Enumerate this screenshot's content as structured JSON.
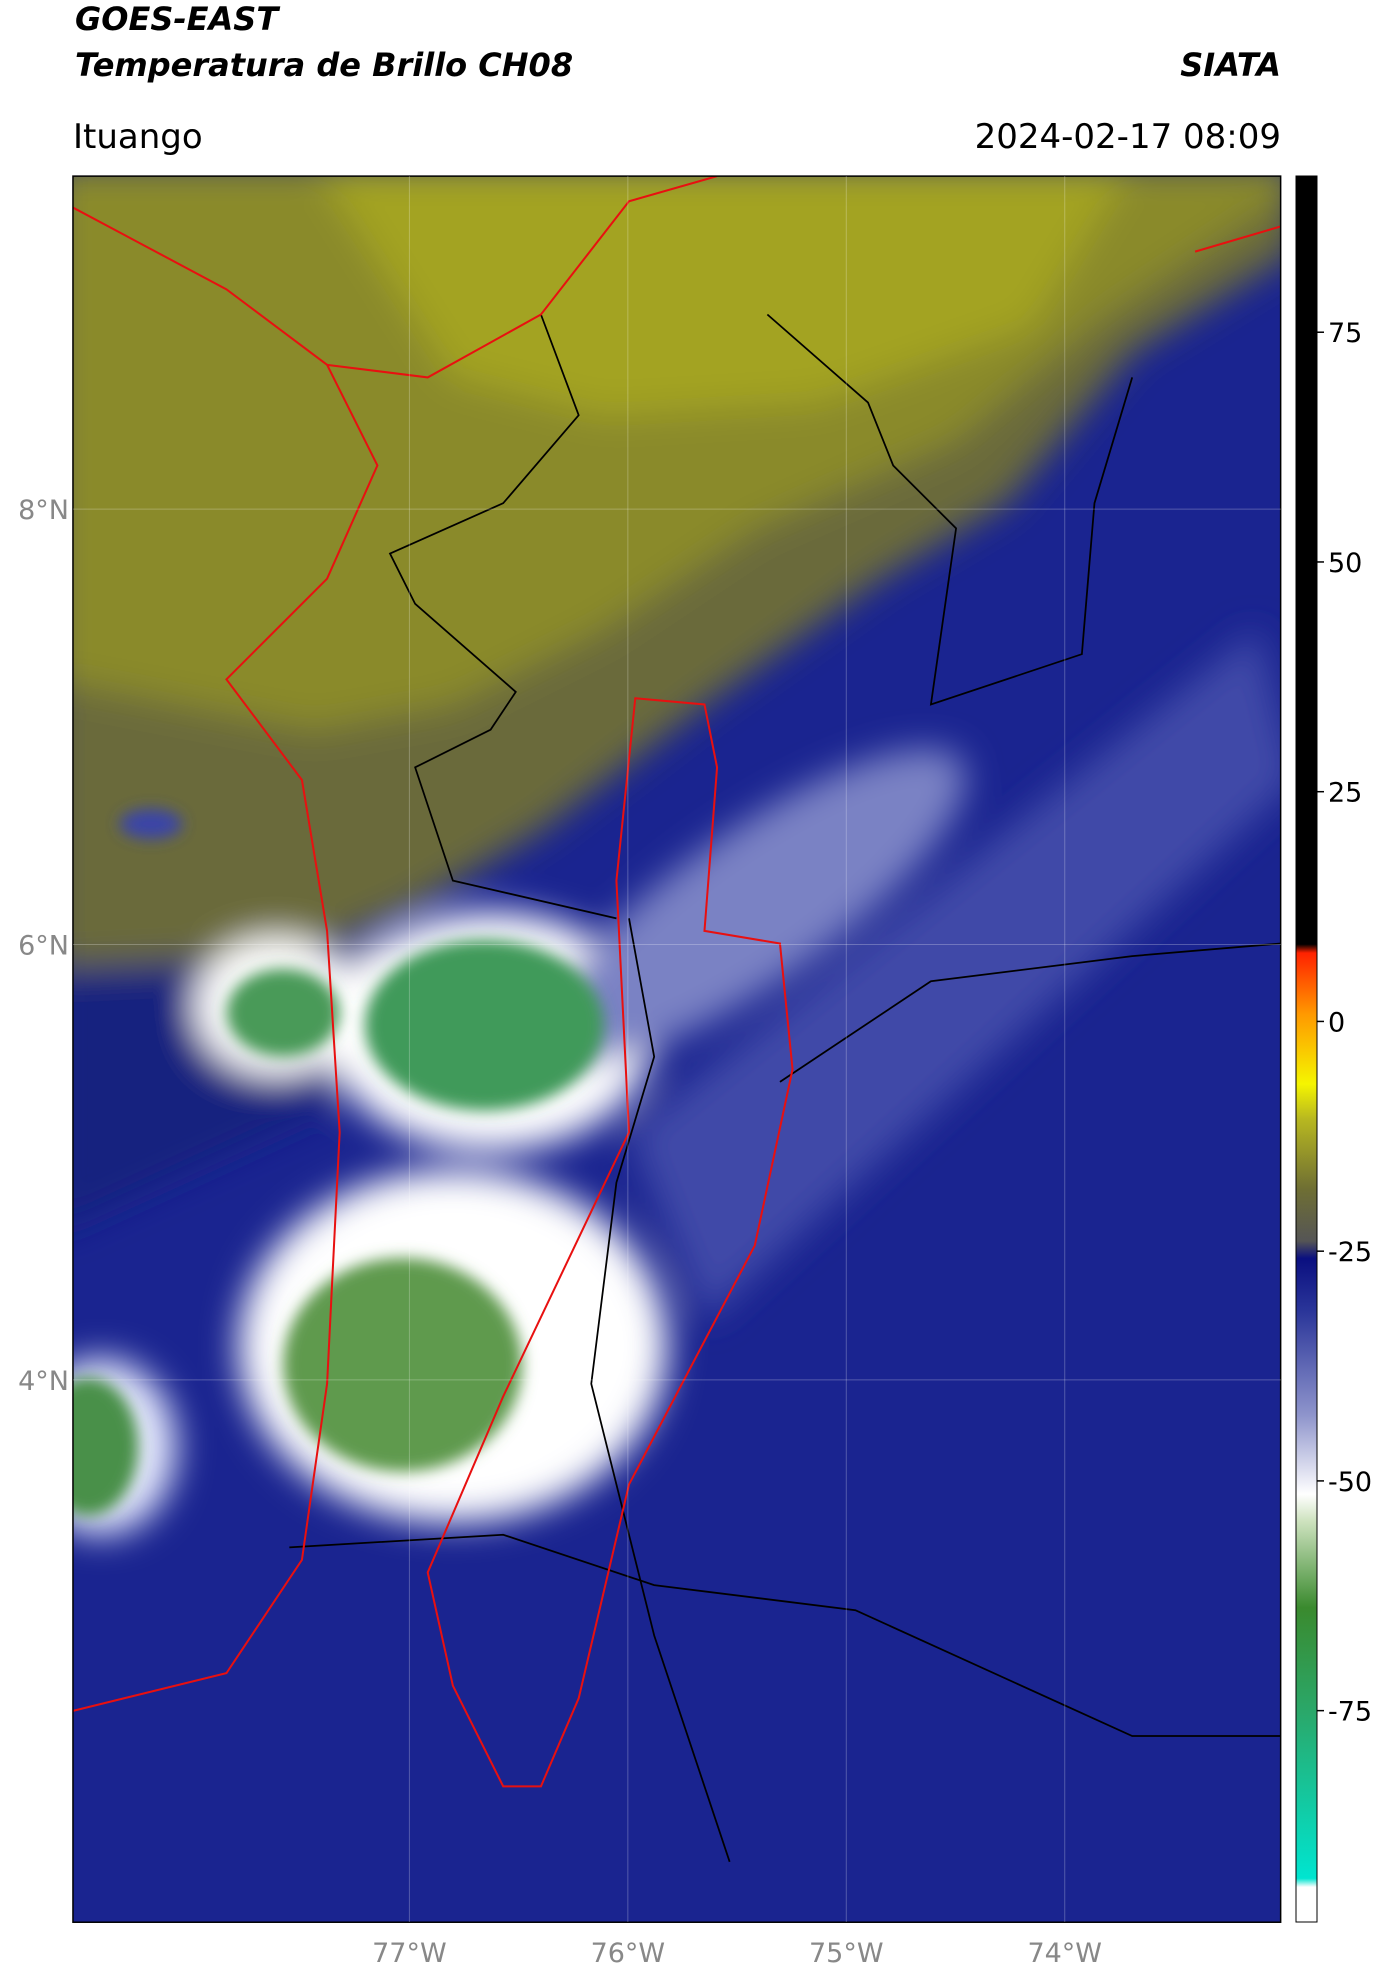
{
  "header": {
    "title": "GOES-EAST",
    "subtitle": "Temperatura de Brillo CH08",
    "brand": "SIATA",
    "location": "Ituango",
    "datetime": "2024-02-17 08:09"
  },
  "map": {
    "xlim": [
      -78.54,
      -73.01
    ],
    "ylim": [
      1.51,
      9.53
    ],
    "xticks": [
      {
        "value": -77,
        "label": "77°W"
      },
      {
        "value": -76,
        "label": "76°W"
      },
      {
        "value": -75,
        "label": "75°W"
      },
      {
        "value": -74,
        "label": "74°W"
      }
    ],
    "yticks": [
      {
        "value": 8,
        "label": "8°N"
      },
      {
        "value": 6,
        "label": "6°N"
      },
      {
        "value": 4,
        "label": "4°N"
      }
    ]
  },
  "colorbar": {
    "lim": [
      -98,
      92
    ],
    "ticks": [
      75,
      50,
      25,
      0,
      -25,
      -50,
      -75
    ]
  }
}
